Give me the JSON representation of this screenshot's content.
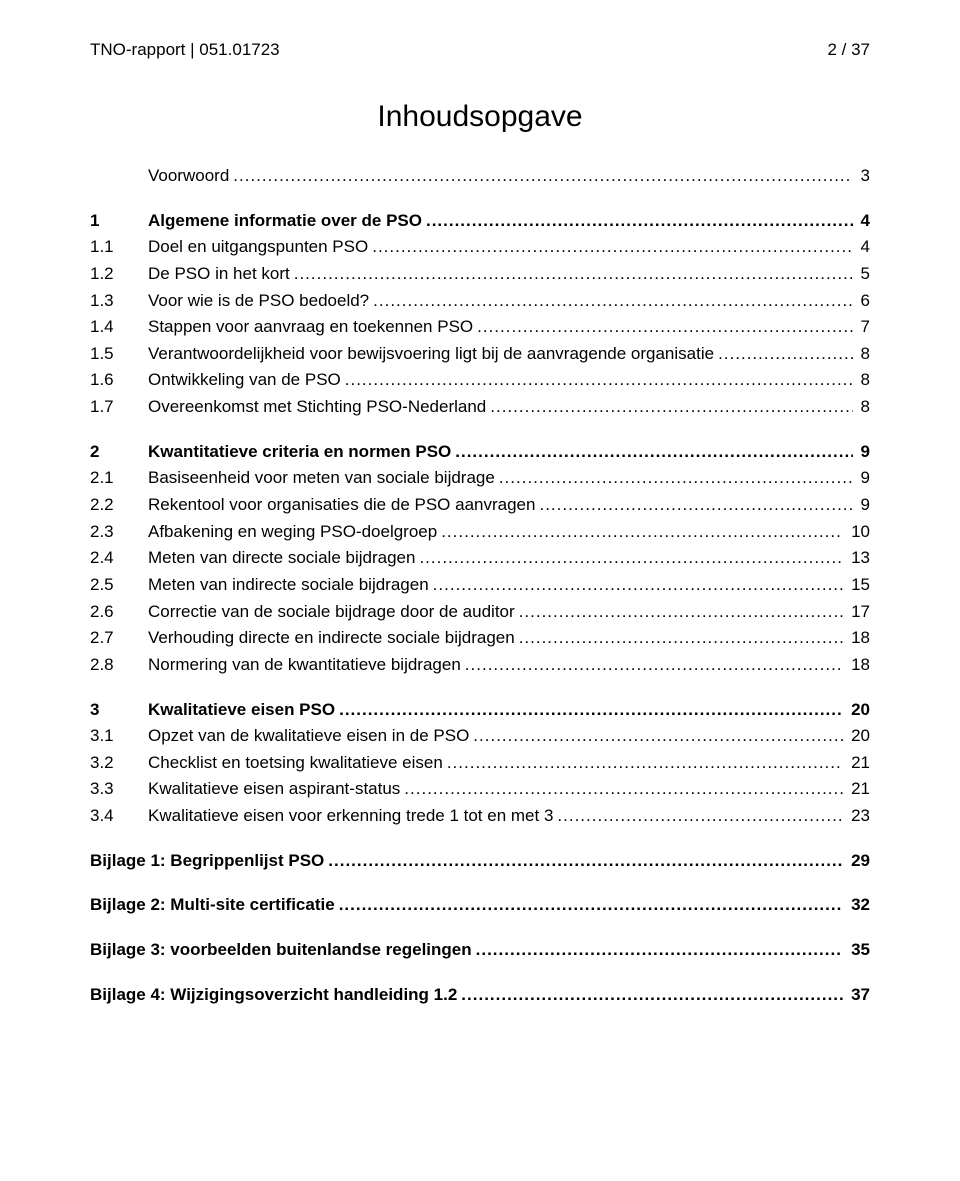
{
  "header": {
    "left": "TNO-rapport | 051.01723",
    "right": "2 / 37"
  },
  "title": "Inhoudsopgave",
  "toc": [
    {
      "num": "",
      "label": "Voorwoord",
      "page": "3",
      "bold": false,
      "gap_before": false
    },
    {
      "num": "1",
      "label": "Algemene informatie over de PSO",
      "page": "4",
      "bold": true,
      "gap_before": true
    },
    {
      "num": "1.1",
      "label": "Doel en uitgangspunten PSO",
      "page": "4",
      "bold": false,
      "gap_before": false
    },
    {
      "num": "1.2",
      "label": "De PSO in het kort",
      "page": "5",
      "bold": false,
      "gap_before": false
    },
    {
      "num": "1.3",
      "label": "Voor wie is de PSO bedoeld?",
      "page": "6",
      "bold": false,
      "gap_before": false
    },
    {
      "num": "1.4",
      "label": "Stappen voor aanvraag en toekennen PSO",
      "page": "7",
      "bold": false,
      "gap_before": false
    },
    {
      "num": "1.5",
      "label": "Verantwoordelijkheid voor bewijsvoering ligt bij de aanvragende organisatie",
      "page": "8",
      "bold": false,
      "gap_before": false
    },
    {
      "num": "1.6",
      "label": "Ontwikkeling van de PSO",
      "page": "8",
      "bold": false,
      "gap_before": false
    },
    {
      "num": "1.7",
      "label": "Overeenkomst met Stichting PSO-Nederland",
      "page": "8",
      "bold": false,
      "gap_before": false
    },
    {
      "num": "2",
      "label": "Kwantitatieve criteria en normen PSO",
      "page": "9",
      "bold": true,
      "gap_before": true
    },
    {
      "num": "2.1",
      "label": "Basiseenheid voor meten van sociale bijdrage",
      "page": "9",
      "bold": false,
      "gap_before": false
    },
    {
      "num": "2.2",
      "label": "Rekentool voor organisaties die de PSO aanvragen",
      "page": "9",
      "bold": false,
      "gap_before": false
    },
    {
      "num": "2.3",
      "label": "Afbakening en weging PSO-doelgroep",
      "page": "10",
      "bold": false,
      "gap_before": false
    },
    {
      "num": "2.4",
      "label": "Meten van directe sociale bijdragen",
      "page": "13",
      "bold": false,
      "gap_before": false
    },
    {
      "num": "2.5",
      "label": "Meten van indirecte sociale bijdragen",
      "page": "15",
      "bold": false,
      "gap_before": false
    },
    {
      "num": "2.6",
      "label": "Correctie van de sociale bijdrage door de auditor",
      "page": "17",
      "bold": false,
      "gap_before": false
    },
    {
      "num": "2.7",
      "label": "Verhouding directe en indirecte sociale bijdragen",
      "page": "18",
      "bold": false,
      "gap_before": false
    },
    {
      "num": "2.8",
      "label": "Normering van de kwantitatieve bijdragen",
      "page": "18",
      "bold": false,
      "gap_before": false
    },
    {
      "num": "3",
      "label": "Kwalitatieve eisen PSO",
      "page": "20",
      "bold": true,
      "gap_before": true
    },
    {
      "num": "3.1",
      "label": "Opzet van de kwalitatieve eisen in de PSO",
      "page": "20",
      "bold": false,
      "gap_before": false
    },
    {
      "num": "3.2",
      "label": "Checklist en toetsing kwalitatieve eisen",
      "page": "21",
      "bold": false,
      "gap_before": false
    },
    {
      "num": "3.3",
      "label": "Kwalitatieve eisen aspirant-status",
      "page": "21",
      "bold": false,
      "gap_before": false
    },
    {
      "num": "3.4",
      "label": "Kwalitatieve eisen voor erkenning trede 1 tot en met 3",
      "page": "23",
      "bold": false,
      "gap_before": false
    },
    {
      "num": "",
      "label": "Bijlage 1: Begrippenlijst PSO",
      "page": "29",
      "bold": true,
      "gap_before": true,
      "no_numcol": true
    },
    {
      "num": "",
      "label": "Bijlage 2: Multi-site certificatie",
      "page": "32",
      "bold": true,
      "gap_before": true,
      "no_numcol": true
    },
    {
      "num": "",
      "label": "Bijlage 3: voorbeelden buitenlandse regelingen",
      "page": "35",
      "bold": true,
      "gap_before": true,
      "no_numcol": true
    },
    {
      "num": "",
      "label": "Bijlage 4: Wijzigingsoverzicht handleiding 1.2",
      "page": "37",
      "bold": true,
      "gap_before": true,
      "no_numcol": true
    }
  ]
}
